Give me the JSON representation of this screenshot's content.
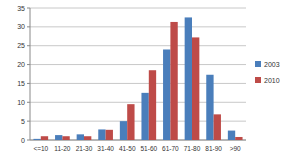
{
  "chart_data": {
    "type": "bar",
    "categories": [
      "<=10",
      "11-20",
      "21-30",
      "31-40",
      "41-50",
      "51-60",
      "61-70",
      "71-80",
      "81-90",
      ">90"
    ],
    "series": [
      {
        "name": "2003",
        "color": "#4a7ebb",
        "values": [
          0.3,
          1.3,
          1.5,
          2.8,
          5,
          12.5,
          24,
          32.5,
          17.3,
          2.5
        ]
      },
      {
        "name": "2010",
        "color": "#be4b48",
        "values": [
          1,
          1,
          1,
          2.7,
          9.5,
          18.5,
          31.3,
          27.2,
          6.8,
          0.8
        ]
      }
    ],
    "ylim": [
      0,
      35
    ],
    "yticks": [
      0,
      5,
      10,
      15,
      20,
      25,
      30,
      35
    ],
    "grid": true,
    "legend": "right"
  }
}
